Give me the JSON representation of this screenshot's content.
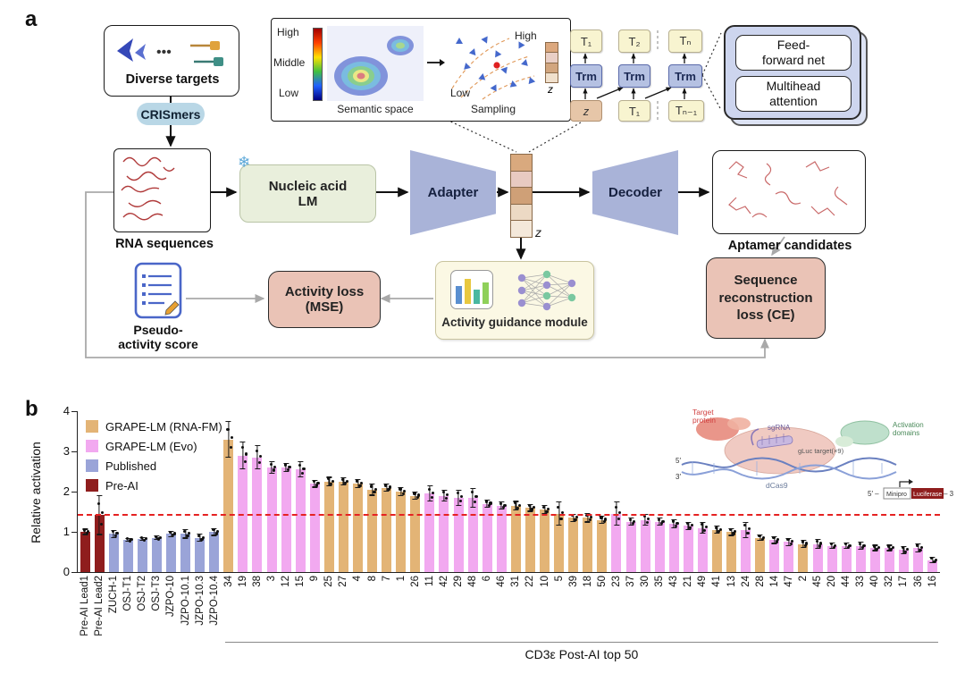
{
  "figure": {
    "panel_a_label": "a",
    "panel_b_label": "b"
  },
  "panel_a": {
    "diverse_targets_label": "Diverse targets",
    "crismers_label": "CRISmers",
    "rna_sequences_label": "RNA sequences",
    "nucleic_acid_lm_label": "Nucleic acid\nLM",
    "adapter_label": "Adapter",
    "z_label": "z",
    "decoder_label": "Decoder",
    "aptamer_candidates_label": "Aptamer candidates",
    "semantic_inset": {
      "high": "High",
      "middle": "Middle",
      "low": "Low",
      "semantic_space": "Semantic space",
      "sampling": "Sampling",
      "sampling_high": "High",
      "sampling_low": "Low",
      "z": "z"
    },
    "transformer_inset": {
      "t1": "T₁",
      "t2": "T₂",
      "tn": "Tₙ",
      "trm1": "Trm",
      "trm2": "Trm",
      "trm3": "Trm",
      "z": "z",
      "t1_in": "T₁",
      "tn_minus1": "Tₙ₋₁",
      "feed_forward": "Feed-\nforward net",
      "multihead": "Multihead\nattention"
    },
    "pseudo_activity_label": "Pseudo-\nactivity score",
    "activity_loss_label": "Activity loss\n(MSE)",
    "activity_guidance_label": "Activity guidance module",
    "seq_recon_label": "Sequence\nreconstruction\nloss (CE)"
  },
  "panel_b": {
    "inset": {
      "target_protein_line1": "Target",
      "target_protein_line2": "protein",
      "sgrna": "sgRNA",
      "gluc_target": "gLuc target(×9)",
      "activation_line1": "Activation",
      "activation_line2": "domains",
      "dcas9": "dCas9",
      "minipro": "Minipro",
      "luciferase": "Luciferase",
      "five_prime_genome": "5′",
      "three_prime_genome": "3′",
      "five_prime_reporter": "5′ –",
      "three_prime_reporter": "– 3′"
    }
  },
  "chart_data": {
    "type": "bar",
    "title": "",
    "ylabel": "Relative activation",
    "ylim": [
      0,
      4
    ],
    "yticks": [
      0,
      1,
      2,
      3,
      4
    ],
    "threshold_line": 1.45,
    "threshold_color": "#e52222",
    "categories": [
      "Pre-AI Lead1",
      "Pre-AI Lead2",
      "ZUCH-1",
      "OSJ-T1",
      "OSJ-T2",
      "OSJ-T3",
      "JZPO-10",
      "JZPO-10.1",
      "JZPO-10.3",
      "JZPO-10.4",
      "34",
      "19",
      "38",
      "3",
      "12",
      "15",
      "9",
      "25",
      "27",
      "4",
      "8",
      "7",
      "1",
      "26",
      "11",
      "42",
      "29",
      "48",
      "6",
      "46",
      "31",
      "22",
      "10",
      "5",
      "39",
      "18",
      "50",
      "23",
      "37",
      "30",
      "35",
      "43",
      "21",
      "49",
      "41",
      "13",
      "24",
      "28",
      "14",
      "47",
      "2",
      "45",
      "20",
      "44",
      "33",
      "40",
      "32",
      "17",
      "36",
      "16"
    ],
    "values": [
      1.0,
      1.42,
      0.95,
      0.8,
      0.82,
      0.85,
      0.95,
      0.95,
      0.85,
      1.0,
      3.3,
      2.9,
      2.85,
      2.6,
      2.6,
      2.55,
      2.2,
      2.25,
      2.25,
      2.2,
      2.05,
      2.1,
      2.0,
      1.9,
      1.95,
      1.9,
      1.85,
      1.85,
      1.7,
      1.65,
      1.65,
      1.6,
      1.55,
      1.45,
      1.35,
      1.35,
      1.3,
      1.45,
      1.25,
      1.3,
      1.25,
      1.2,
      1.15,
      1.1,
      1.05,
      1.0,
      1.05,
      0.85,
      0.8,
      0.75,
      0.7,
      0.7,
      0.65,
      0.65,
      0.65,
      0.6,
      0.6,
      0.55,
      0.6,
      0.3
    ],
    "errors": [
      0.08,
      0.5,
      0.1,
      0.05,
      0.05,
      0.06,
      0.08,
      0.12,
      0.1,
      0.1,
      0.45,
      0.35,
      0.3,
      0.15,
      0.12,
      0.2,
      0.1,
      0.12,
      0.1,
      0.12,
      0.15,
      0.1,
      0.12,
      0.1,
      0.2,
      0.15,
      0.2,
      0.25,
      0.1,
      0.1,
      0.12,
      0.1,
      0.12,
      0.3,
      0.1,
      0.12,
      0.1,
      0.3,
      0.1,
      0.15,
      0.1,
      0.12,
      0.1,
      0.15,
      0.1,
      0.1,
      0.2,
      0.08,
      0.1,
      0.1,
      0.1,
      0.12,
      0.08,
      0.08,
      0.1,
      0.08,
      0.08,
      0.1,
      0.12,
      0.08
    ],
    "groups": [
      "preai",
      "preai",
      "published",
      "published",
      "published",
      "published",
      "published",
      "published",
      "published",
      "published",
      "rnafm",
      "evo",
      "evo",
      "evo",
      "evo",
      "evo",
      "evo",
      "rnafm",
      "rnafm",
      "rnafm",
      "rnafm",
      "rnafm",
      "rnafm",
      "rnafm",
      "evo",
      "evo",
      "evo",
      "evo",
      "evo",
      "evo",
      "rnafm",
      "rnafm",
      "rnafm",
      "rnafm",
      "rnafm",
      "rnafm",
      "rnafm",
      "evo",
      "evo",
      "evo",
      "evo",
      "evo",
      "evo",
      "evo",
      "rnafm",
      "rnafm",
      "evo",
      "rnafm",
      "evo",
      "evo",
      "rnafm",
      "evo",
      "evo",
      "evo",
      "evo",
      "evo",
      "evo",
      "evo",
      "evo",
      "evo"
    ],
    "colors": {
      "rnafm": "#e3b476",
      "evo": "#f2a9f0",
      "published": "#9aa4d8",
      "preai": "#8f1d1d"
    },
    "legend": [
      {
        "key": "rnafm",
        "label": "GRAPE-LM (RNA-FM)"
      },
      {
        "key": "evo",
        "label": "GRAPE-LM (Evo)"
      },
      {
        "key": "published",
        "label": "Published"
      },
      {
        "key": "preai",
        "label": "Pre-AI"
      }
    ],
    "group_span": {
      "start_index": 10,
      "label": "CD3ε Post-AI top 50"
    },
    "legend_position": "upper left",
    "grid": false
  }
}
